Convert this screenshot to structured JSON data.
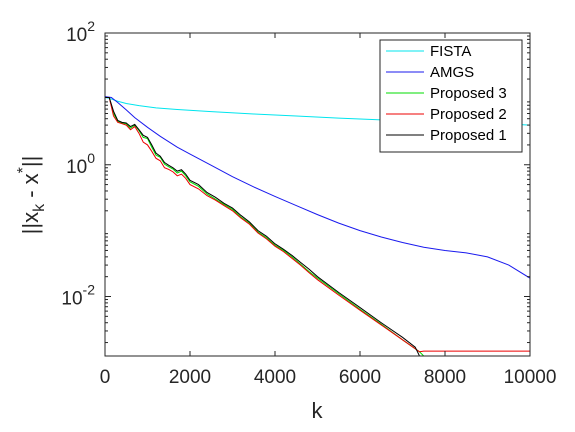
{
  "chart_data": {
    "type": "line",
    "xlabel": "k",
    "ylabel_parts": {
      "base": "||x",
      "sub": "k",
      "mid": " - x",
      "sup": "*",
      "end": "||"
    },
    "xlim": [
      0,
      10000
    ],
    "ylim": [
      0.00125,
      100
    ],
    "y_scale": "log",
    "grid": false,
    "legend_position": "top-right",
    "x_ticks": [
      {
        "value": 0,
        "label": "0"
      },
      {
        "value": 2000,
        "label": "2000"
      },
      {
        "value": 4000,
        "label": "4000"
      },
      {
        "value": 6000,
        "label": "6000"
      },
      {
        "value": 8000,
        "label": "8000"
      },
      {
        "value": 10000,
        "label": "10000"
      }
    ],
    "y_ticks": [
      {
        "value": 100,
        "base": "10",
        "exp": "2"
      },
      {
        "value": 1,
        "base": "10",
        "exp": "0"
      },
      {
        "value": 0.01,
        "base": "10",
        "exp": "-2"
      }
    ],
    "series": [
      {
        "name": "FISTA",
        "color": "#00e5ee",
        "points": [
          [
            0,
            10.5
          ],
          [
            100,
            10.2
          ],
          [
            300,
            9.2
          ],
          [
            500,
            8.5
          ],
          [
            800,
            7.9
          ],
          [
            1200,
            7.3
          ],
          [
            1700,
            6.9
          ],
          [
            2500,
            6.4
          ],
          [
            3500,
            5.9
          ],
          [
            4500,
            5.5
          ],
          [
            5500,
            5.1
          ],
          [
            6500,
            4.8
          ],
          [
            7500,
            4.5
          ],
          [
            8500,
            4.3
          ],
          [
            9500,
            4.15
          ],
          [
            10000,
            4.0
          ]
        ]
      },
      {
        "name": "AMGS",
        "color": "#1a1aee",
        "points": [
          [
            0,
            10.8
          ],
          [
            150,
            10.5
          ],
          [
            300,
            8.8
          ],
          [
            500,
            6.8
          ],
          [
            700,
            5.2
          ],
          [
            1000,
            3.7
          ],
          [
            1300,
            2.7
          ],
          [
            1700,
            1.85
          ],
          [
            2000,
            1.45
          ],
          [
            2500,
            0.98
          ],
          [
            3000,
            0.66
          ],
          [
            3500,
            0.46
          ],
          [
            4000,
            0.33
          ],
          [
            4500,
            0.24
          ],
          [
            5000,
            0.175
          ],
          [
            5500,
            0.13
          ],
          [
            6000,
            0.1
          ],
          [
            6500,
            0.08
          ],
          [
            7000,
            0.066
          ],
          [
            7500,
            0.056
          ],
          [
            8000,
            0.05
          ],
          [
            8500,
            0.046
          ],
          [
            9000,
            0.04
          ],
          [
            9500,
            0.03
          ],
          [
            10000,
            0.019
          ]
        ]
      },
      {
        "name": "Proposed 3",
        "color": "#00dd00",
        "points": [
          [
            0,
            10.5
          ],
          [
            100,
            10.5
          ],
          [
            200,
            6.0
          ],
          [
            300,
            4.6
          ],
          [
            400,
            4.3
          ],
          [
            500,
            4.2
          ],
          [
            600,
            3.6
          ],
          [
            700,
            4.0
          ],
          [
            800,
            3.3
          ],
          [
            900,
            2.6
          ],
          [
            1000,
            2.5
          ],
          [
            1100,
            1.85
          ],
          [
            1200,
            1.4
          ],
          [
            1300,
            1.3
          ],
          [
            1400,
            1.02
          ],
          [
            1500,
            0.93
          ],
          [
            1600,
            0.86
          ],
          [
            1700,
            0.75
          ],
          [
            1800,
            0.8
          ],
          [
            1900,
            0.68
          ],
          [
            2000,
            0.55
          ],
          [
            2200,
            0.47
          ],
          [
            2400,
            0.36
          ],
          [
            2600,
            0.3
          ],
          [
            2800,
            0.25
          ],
          [
            3000,
            0.21
          ],
          [
            3200,
            0.16
          ],
          [
            3400,
            0.13
          ],
          [
            3600,
            0.095
          ],
          [
            3800,
            0.078
          ],
          [
            4000,
            0.06
          ],
          [
            4200,
            0.05
          ],
          [
            4400,
            0.04
          ],
          [
            4600,
            0.031
          ],
          [
            4800,
            0.024
          ],
          [
            5000,
            0.019
          ],
          [
            5500,
            0.011
          ],
          [
            6000,
            0.0064
          ],
          [
            6500,
            0.0038
          ],
          [
            7000,
            0.0022
          ],
          [
            7400,
            0.00145
          ],
          [
            7500,
            0.00125
          ],
          [
            10000,
            0.00125
          ]
        ]
      },
      {
        "name": "Proposed 2",
        "color": "#ee0000",
        "points": [
          [
            0,
            10.5
          ],
          [
            100,
            10.5
          ],
          [
            200,
            5.5
          ],
          [
            300,
            4.4
          ],
          [
            400,
            4.2
          ],
          [
            500,
            4.0
          ],
          [
            600,
            3.4
          ],
          [
            700,
            3.8
          ],
          [
            800,
            3.0
          ],
          [
            900,
            2.2
          ],
          [
            1000,
            2.0
          ],
          [
            1100,
            1.6
          ],
          [
            1200,
            1.25
          ],
          [
            1300,
            1.15
          ],
          [
            1400,
            0.9
          ],
          [
            1500,
            0.85
          ],
          [
            1600,
            0.78
          ],
          [
            1700,
            0.68
          ],
          [
            1800,
            0.72
          ],
          [
            1900,
            0.62
          ],
          [
            2000,
            0.5
          ],
          [
            2200,
            0.43
          ],
          [
            2400,
            0.34
          ],
          [
            2600,
            0.29
          ],
          [
            2800,
            0.24
          ],
          [
            3000,
            0.2
          ],
          [
            3200,
            0.155
          ],
          [
            3400,
            0.125
          ],
          [
            3600,
            0.092
          ],
          [
            3800,
            0.075
          ],
          [
            4000,
            0.058
          ],
          [
            4200,
            0.048
          ],
          [
            4400,
            0.038
          ],
          [
            4600,
            0.03
          ],
          [
            4800,
            0.023
          ],
          [
            5000,
            0.018
          ],
          [
            5500,
            0.0105
          ],
          [
            6000,
            0.0062
          ],
          [
            6500,
            0.0037
          ],
          [
            7000,
            0.0022
          ],
          [
            7400,
            0.00145
          ],
          [
            7500,
            0.00148
          ],
          [
            10000,
            0.00148
          ]
        ]
      },
      {
        "name": "Proposed 1",
        "color": "#000000",
        "points": [
          [
            0,
            10.5
          ],
          [
            100,
            10.5
          ],
          [
            200,
            6.5
          ],
          [
            300,
            4.7
          ],
          [
            400,
            4.4
          ],
          [
            500,
            4.3
          ],
          [
            600,
            3.8
          ],
          [
            700,
            4.1
          ],
          [
            800,
            3.4
          ],
          [
            900,
            2.8
          ],
          [
            1000,
            2.6
          ],
          [
            1100,
            2.0
          ],
          [
            1200,
            1.5
          ],
          [
            1300,
            1.35
          ],
          [
            1400,
            1.08
          ],
          [
            1500,
            0.98
          ],
          [
            1600,
            0.9
          ],
          [
            1700,
            0.8
          ],
          [
            1800,
            0.84
          ],
          [
            1900,
            0.72
          ],
          [
            2000,
            0.58
          ],
          [
            2200,
            0.5
          ],
          [
            2400,
            0.38
          ],
          [
            2600,
            0.32
          ],
          [
            2800,
            0.26
          ],
          [
            3000,
            0.22
          ],
          [
            3200,
            0.17
          ],
          [
            3400,
            0.135
          ],
          [
            3600,
            0.1
          ],
          [
            3800,
            0.082
          ],
          [
            4000,
            0.063
          ],
          [
            4200,
            0.052
          ],
          [
            4400,
            0.042
          ],
          [
            4600,
            0.033
          ],
          [
            4800,
            0.026
          ],
          [
            5000,
            0.02
          ],
          [
            5500,
            0.0115
          ],
          [
            6000,
            0.0068
          ],
          [
            6500,
            0.004
          ],
          [
            7000,
            0.0024
          ],
          [
            7300,
            0.0017
          ],
          [
            7400,
            0.00125
          ],
          [
            10000,
            0.00125
          ]
        ]
      }
    ]
  }
}
